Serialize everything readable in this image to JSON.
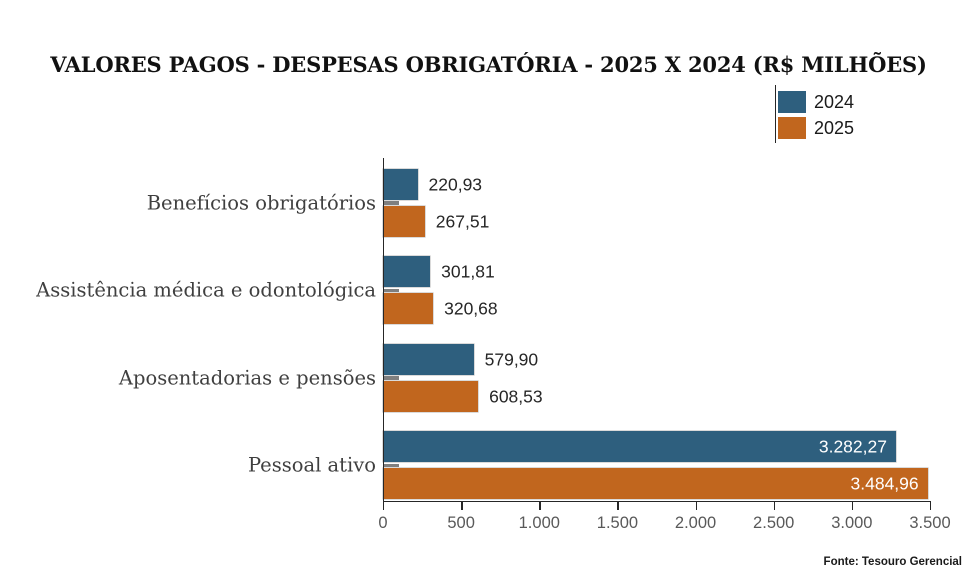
{
  "title": "VALORES PAGOS - DESPESAS OBRIGATÓRIA - 2025 X 2024 (R$ MILHÕES)",
  "footer": "Fonte: Tesouro Gerencial",
  "legend": {
    "items": [
      {
        "label": "2024",
        "color": "#2E5F7E"
      },
      {
        "label": "2025",
        "color": "#C1661E"
      }
    ]
  },
  "colors": {
    "series_2024": "#2E5F7E",
    "series_2025": "#C1661E",
    "axis": "#262626",
    "category_tick": "#7f7f7f",
    "tick_label": "#595959",
    "category_label": "#3f3f3f",
    "value_label": "#262626",
    "value_label_inside": "#ffffff",
    "background": "#ffffff"
  },
  "chart_data": {
    "type": "bar",
    "orientation": "horizontal",
    "title": "VALORES PAGOS - DESPESAS OBRIGATÓRIA - 2025 X 2024 (R$ MILHÕES)",
    "categories": [
      "Benefícios obrigatórios",
      "Assistência médica e odontológica",
      "Aposentadorias e pensões",
      "Pessoal ativo"
    ],
    "series": [
      {
        "name": "2024",
        "color": "#2E5F7E",
        "values": [
          220.93,
          301.81,
          579.9,
          3282.27
        ],
        "value_labels": [
          "220,93",
          "301,81",
          "579,90",
          "3.282,27"
        ]
      },
      {
        "name": "2025",
        "color": "#C1661E",
        "values": [
          267.51,
          320.68,
          608.53,
          3484.96
        ],
        "value_labels": [
          "267,51",
          "320,68",
          "608,53",
          "3.484,96"
        ]
      }
    ],
    "xlabel": "",
    "ylabel": "",
    "xlim": [
      0,
      3500
    ],
    "x_ticks": [
      0,
      500,
      1000,
      1500,
      2000,
      2500,
      3000,
      3500
    ],
    "x_tick_labels": [
      "0",
      "500",
      "1.000",
      "1.500",
      "2.000",
      "2.500",
      "3.000",
      "3.500"
    ],
    "grid": false,
    "legend_position": "top-right"
  }
}
